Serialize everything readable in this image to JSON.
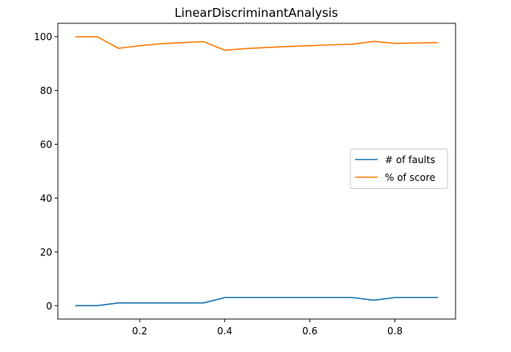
{
  "chart_data": {
    "type": "line",
    "title": "LinearDiscriminantAnalysis",
    "xlabel": "",
    "ylabel": "",
    "x": [
      0.05,
      0.1,
      0.15,
      0.2,
      0.25,
      0.3,
      0.35,
      0.4,
      0.45,
      0.5,
      0.55,
      0.6,
      0.65,
      0.7,
      0.75,
      0.8,
      0.85,
      0.9
    ],
    "series": [
      {
        "name": "# of faults",
        "color": "#1f77b4",
        "values": [
          0,
          0,
          1,
          1,
          1,
          1,
          1,
          3,
          3,
          3,
          3,
          3,
          3,
          3,
          2,
          3,
          3,
          3
        ]
      },
      {
        "name": "% of score",
        "color": "#ff7f0e",
        "values": [
          100,
          100,
          95.7,
          96.7,
          97.4,
          97.8,
          98.2,
          95.0,
          95.6,
          96.0,
          96.4,
          96.7,
          97.0,
          97.2,
          98.3,
          97.5,
          97.7,
          97.8
        ]
      }
    ],
    "xlim": [
      0.0075,
      0.9425
    ],
    "ylim": [
      -5,
      105
    ],
    "xticks": [
      0.2,
      0.4,
      0.6,
      0.8
    ],
    "xtick_labels": [
      "0.2",
      "0.4",
      "0.6",
      "0.8"
    ],
    "yticks": [
      0,
      20,
      40,
      60,
      80,
      100
    ],
    "ytick_labels": [
      "0",
      "20",
      "40",
      "60",
      "80",
      "100"
    ],
    "legend_position": "center-right",
    "grid": false
  }
}
